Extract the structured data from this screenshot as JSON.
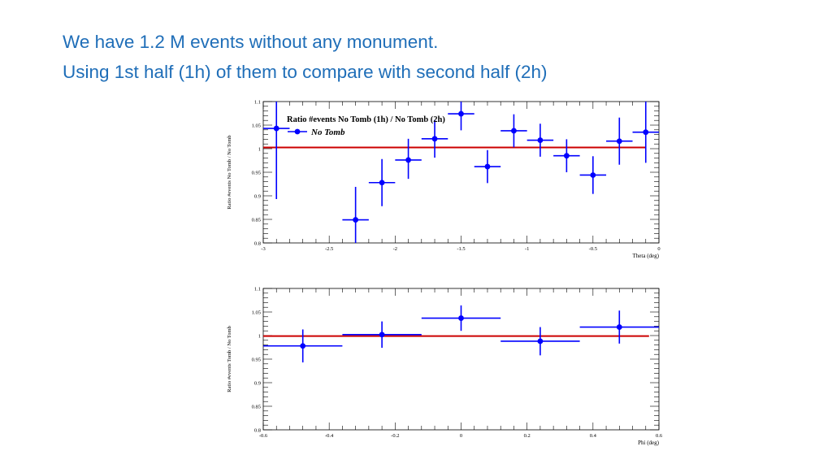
{
  "slide": {
    "title_line1": "We have 1.2 M events without any monument.",
    "title_line2": "Using 1st half (1h) of them to compare with second half (2h)"
  },
  "colors": {
    "title": "#1f6eb8",
    "data": "#0000ff",
    "fit_line": "#cc0000",
    "axis": "#000000"
  },
  "chart_data": [
    {
      "type": "scatter",
      "title": "Ratio #events No Tomb (1h) / No Tomb (2h)",
      "legend": {
        "label": "No Tomb",
        "placement": "top-left"
      },
      "xlabel": "Theta (deg)",
      "ylabel": "Ratio #events No Tomb / No Tomb",
      "xlim": [
        -3,
        0
      ],
      "ylim": [
        0.8,
        1.1
      ],
      "xticks": [
        -3,
        -2.5,
        -2,
        -1.5,
        -1,
        -0.5,
        0
      ],
      "xtick_labels": [
        "-3",
        "-2.5",
        "-2",
        "-1.5",
        "-1",
        "-0.5",
        "0"
      ],
      "yticks": [
        0.8,
        0.85,
        0.9,
        0.95,
        1,
        1.05,
        1.1
      ],
      "ytick_labels": [
        "0.8",
        "0.85",
        "0.9",
        "0.95",
        "1",
        "1.05",
        "1.1"
      ],
      "fit_line": {
        "y": 1.0025,
        "x_range": [
          -3,
          -0.1
        ]
      },
      "points": [
        {
          "x": -2.9,
          "y": 1.043,
          "xerr": 0.1,
          "yerr_low": 0.15,
          "yerr_high": 0.07
        },
        {
          "x": -2.3,
          "y": 0.849,
          "xerr": 0.1,
          "yerr_low": 0.05,
          "yerr_high": 0.07
        },
        {
          "x": -2.1,
          "y": 0.928,
          "xerr": 0.1,
          "yerr_low": 0.05,
          "yerr_high": 0.05
        },
        {
          "x": -1.9,
          "y": 0.976,
          "xerr": 0.1,
          "yerr_low": 0.04,
          "yerr_high": 0.045
        },
        {
          "x": -1.7,
          "y": 1.021,
          "xerr": 0.1,
          "yerr_low": 0.04,
          "yerr_high": 0.04
        },
        {
          "x": -1.5,
          "y": 1.074,
          "xerr": 0.1,
          "yerr_low": 0.035,
          "yerr_high": 0.035
        },
        {
          "x": -1.3,
          "y": 0.962,
          "xerr": 0.1,
          "yerr_low": 0.035,
          "yerr_high": 0.035
        },
        {
          "x": -1.1,
          "y": 1.038,
          "xerr": 0.1,
          "yerr_low": 0.035,
          "yerr_high": 0.035
        },
        {
          "x": -0.9,
          "y": 1.018,
          "xerr": 0.1,
          "yerr_low": 0.035,
          "yerr_high": 0.035
        },
        {
          "x": -0.7,
          "y": 0.985,
          "xerr": 0.1,
          "yerr_low": 0.035,
          "yerr_high": 0.035
        },
        {
          "x": -0.5,
          "y": 0.944,
          "xerr": 0.1,
          "yerr_low": 0.04,
          "yerr_high": 0.04
        },
        {
          "x": -0.3,
          "y": 1.016,
          "xerr": 0.1,
          "yerr_low": 0.05,
          "yerr_high": 0.05
        },
        {
          "x": -0.1,
          "y": 1.035,
          "xerr": 0.1,
          "yerr_low": 0.065,
          "yerr_high": 0.1
        }
      ]
    },
    {
      "type": "scatter",
      "title": "",
      "xlabel": "Phi (deg)",
      "ylabel": "Ratio #events Tomb / No Tomb",
      "xlim": [
        -0.6,
        0.6
      ],
      "ylim": [
        0.8,
        1.1
      ],
      "xticks": [
        -0.6,
        -0.4,
        -0.2,
        0,
        0.2,
        0.4,
        0.6
      ],
      "xtick_labels": [
        "-0.6",
        "-0.4",
        "-0.2",
        "0",
        "0.2",
        "0.4",
        "0.6"
      ],
      "yticks": [
        0.8,
        0.85,
        0.9,
        0.95,
        1,
        1.05,
        1.1
      ],
      "ytick_labels": [
        "0.8",
        "0.85",
        "0.9",
        "0.95",
        "1",
        "1.05",
        "1.1"
      ],
      "fit_line": {
        "y": 0.999,
        "x_range": [
          -0.6,
          0.57
        ]
      },
      "points": [
        {
          "x": -0.48,
          "y": 0.978,
          "xerr": 0.12,
          "yerr_low": 0.035,
          "yerr_high": 0.035
        },
        {
          "x": -0.24,
          "y": 1.002,
          "xerr": 0.12,
          "yerr_low": 0.028,
          "yerr_high": 0.028
        },
        {
          "x": 0.0,
          "y": 1.037,
          "xerr": 0.12,
          "yerr_low": 0.027,
          "yerr_high": 0.027
        },
        {
          "x": 0.24,
          "y": 0.988,
          "xerr": 0.12,
          "yerr_low": 0.03,
          "yerr_high": 0.03
        },
        {
          "x": 0.48,
          "y": 1.018,
          "xerr": 0.12,
          "yerr_low": 0.035,
          "yerr_high": 0.035
        }
      ]
    }
  ]
}
